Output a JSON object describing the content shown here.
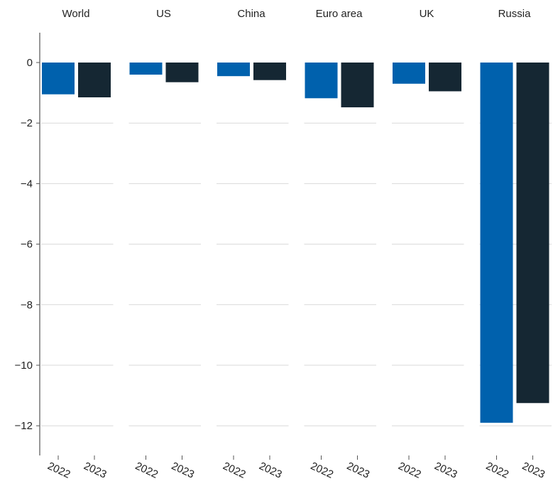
{
  "chart_data": {
    "type": "bar",
    "title": "",
    "xlabel": "",
    "ylabel": "",
    "ylim": [
      -13,
      1
    ],
    "yticks": [
      0,
      -2,
      -4,
      -6,
      -8,
      -10,
      -12
    ],
    "grid": true,
    "categories": [
      "2022",
      "2023"
    ],
    "series_colors": [
      "#0061ad",
      "#152733"
    ],
    "panels": [
      {
        "title": "World",
        "values": [
          -1.05,
          -1.15
        ]
      },
      {
        "title": "US",
        "values": [
          -0.4,
          -0.65
        ]
      },
      {
        "title": "China",
        "values": [
          -0.45,
          -0.58
        ]
      },
      {
        "title": "Euro area",
        "values": [
          -1.18,
          -1.48
        ]
      },
      {
        "title": "UK",
        "values": [
          -0.7,
          -0.95
        ]
      },
      {
        "title": "Russia",
        "values": [
          -11.9,
          -11.25
        ]
      }
    ]
  }
}
